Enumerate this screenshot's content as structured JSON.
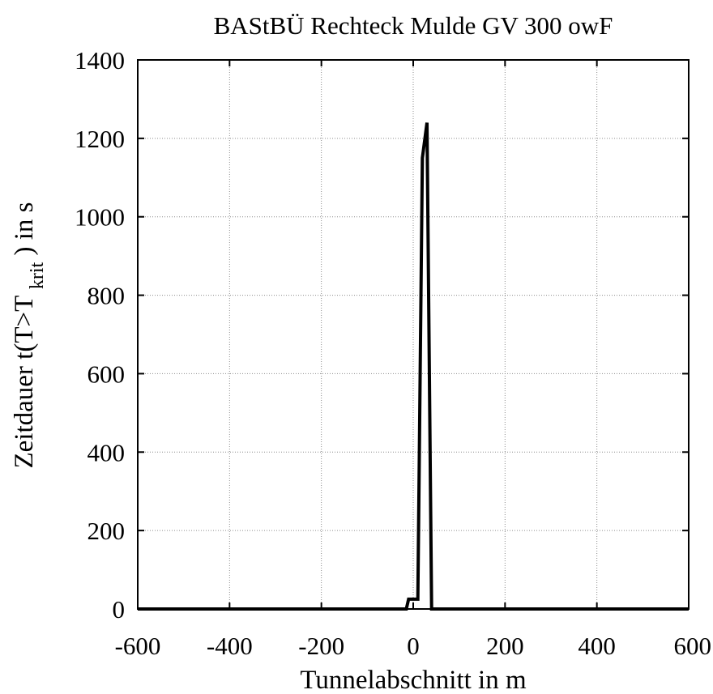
{
  "chart_data": {
    "type": "line",
    "title": "BAStBÜ Rechteck Mulde GV 300 owF",
    "xlabel": "Tunnelabschnitt in m",
    "ylabel": {
      "prefix": "Zeitdauer t(T>T",
      "subscript": "krit",
      "suffix": ") in s"
    },
    "xlim": [
      -600,
      600
    ],
    "ylim": [
      0,
      1400
    ],
    "xticks": [
      -600,
      -400,
      -200,
      0,
      200,
      400,
      600
    ],
    "yticks": [
      0,
      200,
      400,
      600,
      800,
      1000,
      1200,
      1400
    ],
    "xtick_labels": [
      "-600",
      "-400",
      "-200",
      "0",
      "200",
      "400",
      "600"
    ],
    "ytick_labels": [
      "0",
      "200",
      "400",
      "600",
      "800",
      "1000",
      "1200",
      "1400"
    ],
    "grid": true,
    "series": [
      {
        "color": "#000000",
        "x": [
          -600,
          -15,
          -10,
          0,
          10,
          20,
          30,
          40,
          600
        ],
        "y": [
          0,
          0,
          25,
          25,
          25,
          1150,
          1240,
          0,
          0
        ]
      },
      {
        "color": "#8b0000",
        "x": [
          -600,
          600
        ],
        "y": [
          0,
          0
        ]
      }
    ]
  }
}
